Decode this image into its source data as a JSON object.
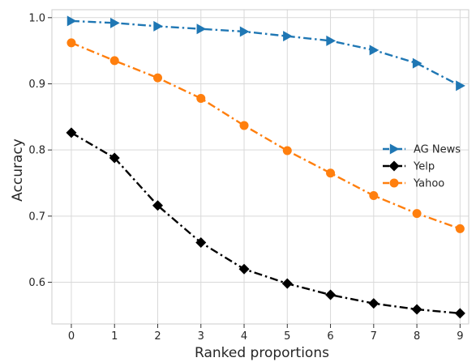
{
  "chart_data": {
    "type": "line",
    "title": "",
    "xlabel": "Ranked proportions",
    "ylabel": "Accuracy",
    "x": [
      0,
      1,
      2,
      3,
      4,
      5,
      6,
      7,
      8,
      9
    ],
    "xticks": [
      "0",
      "1",
      "2",
      "3",
      "4",
      "5",
      "6",
      "7",
      "8",
      "9"
    ],
    "yticks": [
      "0.6",
      "0.7",
      "0.8",
      "0.9",
      "1.0"
    ],
    "ylim": [
      0.537,
      1.012
    ],
    "xlim": [
      -0.45,
      9.2
    ],
    "grid": true,
    "legend_position": "center-right",
    "series": [
      {
        "name": "AG News",
        "color": "#1f77b4",
        "marker": "triangle-right",
        "linestyle": "dash-dot",
        "values": [
          0.995,
          0.992,
          0.987,
          0.983,
          0.979,
          0.972,
          0.965,
          0.951,
          0.931,
          0.897
        ]
      },
      {
        "name": "Yelp",
        "color": "#000000",
        "marker": "diamond",
        "linestyle": "dash-dot",
        "values": [
          0.826,
          0.788,
          0.716,
          0.66,
          0.62,
          0.598,
          0.581,
          0.568,
          0.559,
          0.553
        ]
      },
      {
        "name": "Yahoo",
        "color": "#ff7f0e",
        "marker": "circle",
        "linestyle": "dash-dot",
        "values": [
          0.962,
          0.935,
          0.909,
          0.878,
          0.837,
          0.799,
          0.765,
          0.731,
          0.704,
          0.681
        ]
      }
    ]
  }
}
